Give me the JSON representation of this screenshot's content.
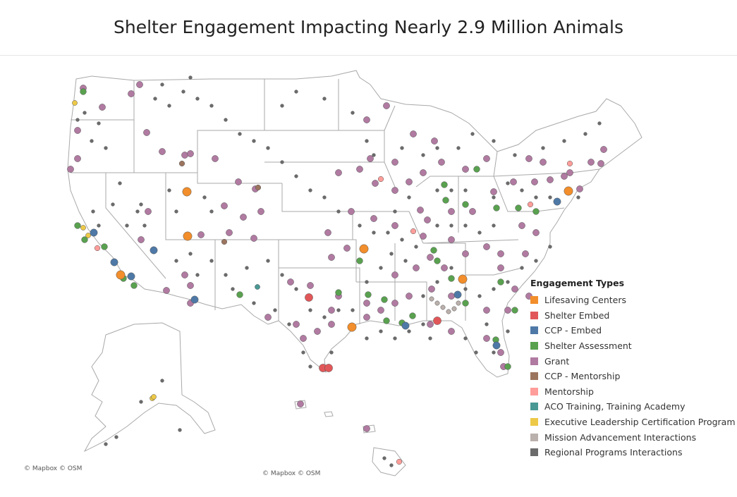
{
  "title": "Shelter Engagement Impacting Nearly 2.9 Million Animals",
  "legend": {
    "title": "Engagement Types",
    "items": [
      {
        "label": "Lifesaving Centers",
        "color": "#f28e2b"
      },
      {
        "label": "Shelter Embed",
        "color": "#e15759"
      },
      {
        "label": "CCP - Embed",
        "color": "#4e79a7"
      },
      {
        "label": "Shelter Assessment",
        "color": "#59a14f"
      },
      {
        "label": "Grant",
        "color": "#b07aa1"
      },
      {
        "label": "CCP - Mentorship",
        "color": "#9c755f"
      },
      {
        "label": "Mentorship",
        "color": "#ff9d9a"
      },
      {
        "label": "ACO Training, Training Academy",
        "color": "#499894"
      },
      {
        "label": "Executive Leadership Certification Program",
        "color": "#edc948"
      },
      {
        "label": "Mission Advancement Interactions",
        "color": "#bab0ac"
      },
      {
        "label": "Regional Programs Interactions",
        "color": "#6b6b6b"
      }
    ]
  },
  "credits": {
    "inset": "© Mapbox © OSM",
    "main": "© Mapbox © OSM"
  }
}
